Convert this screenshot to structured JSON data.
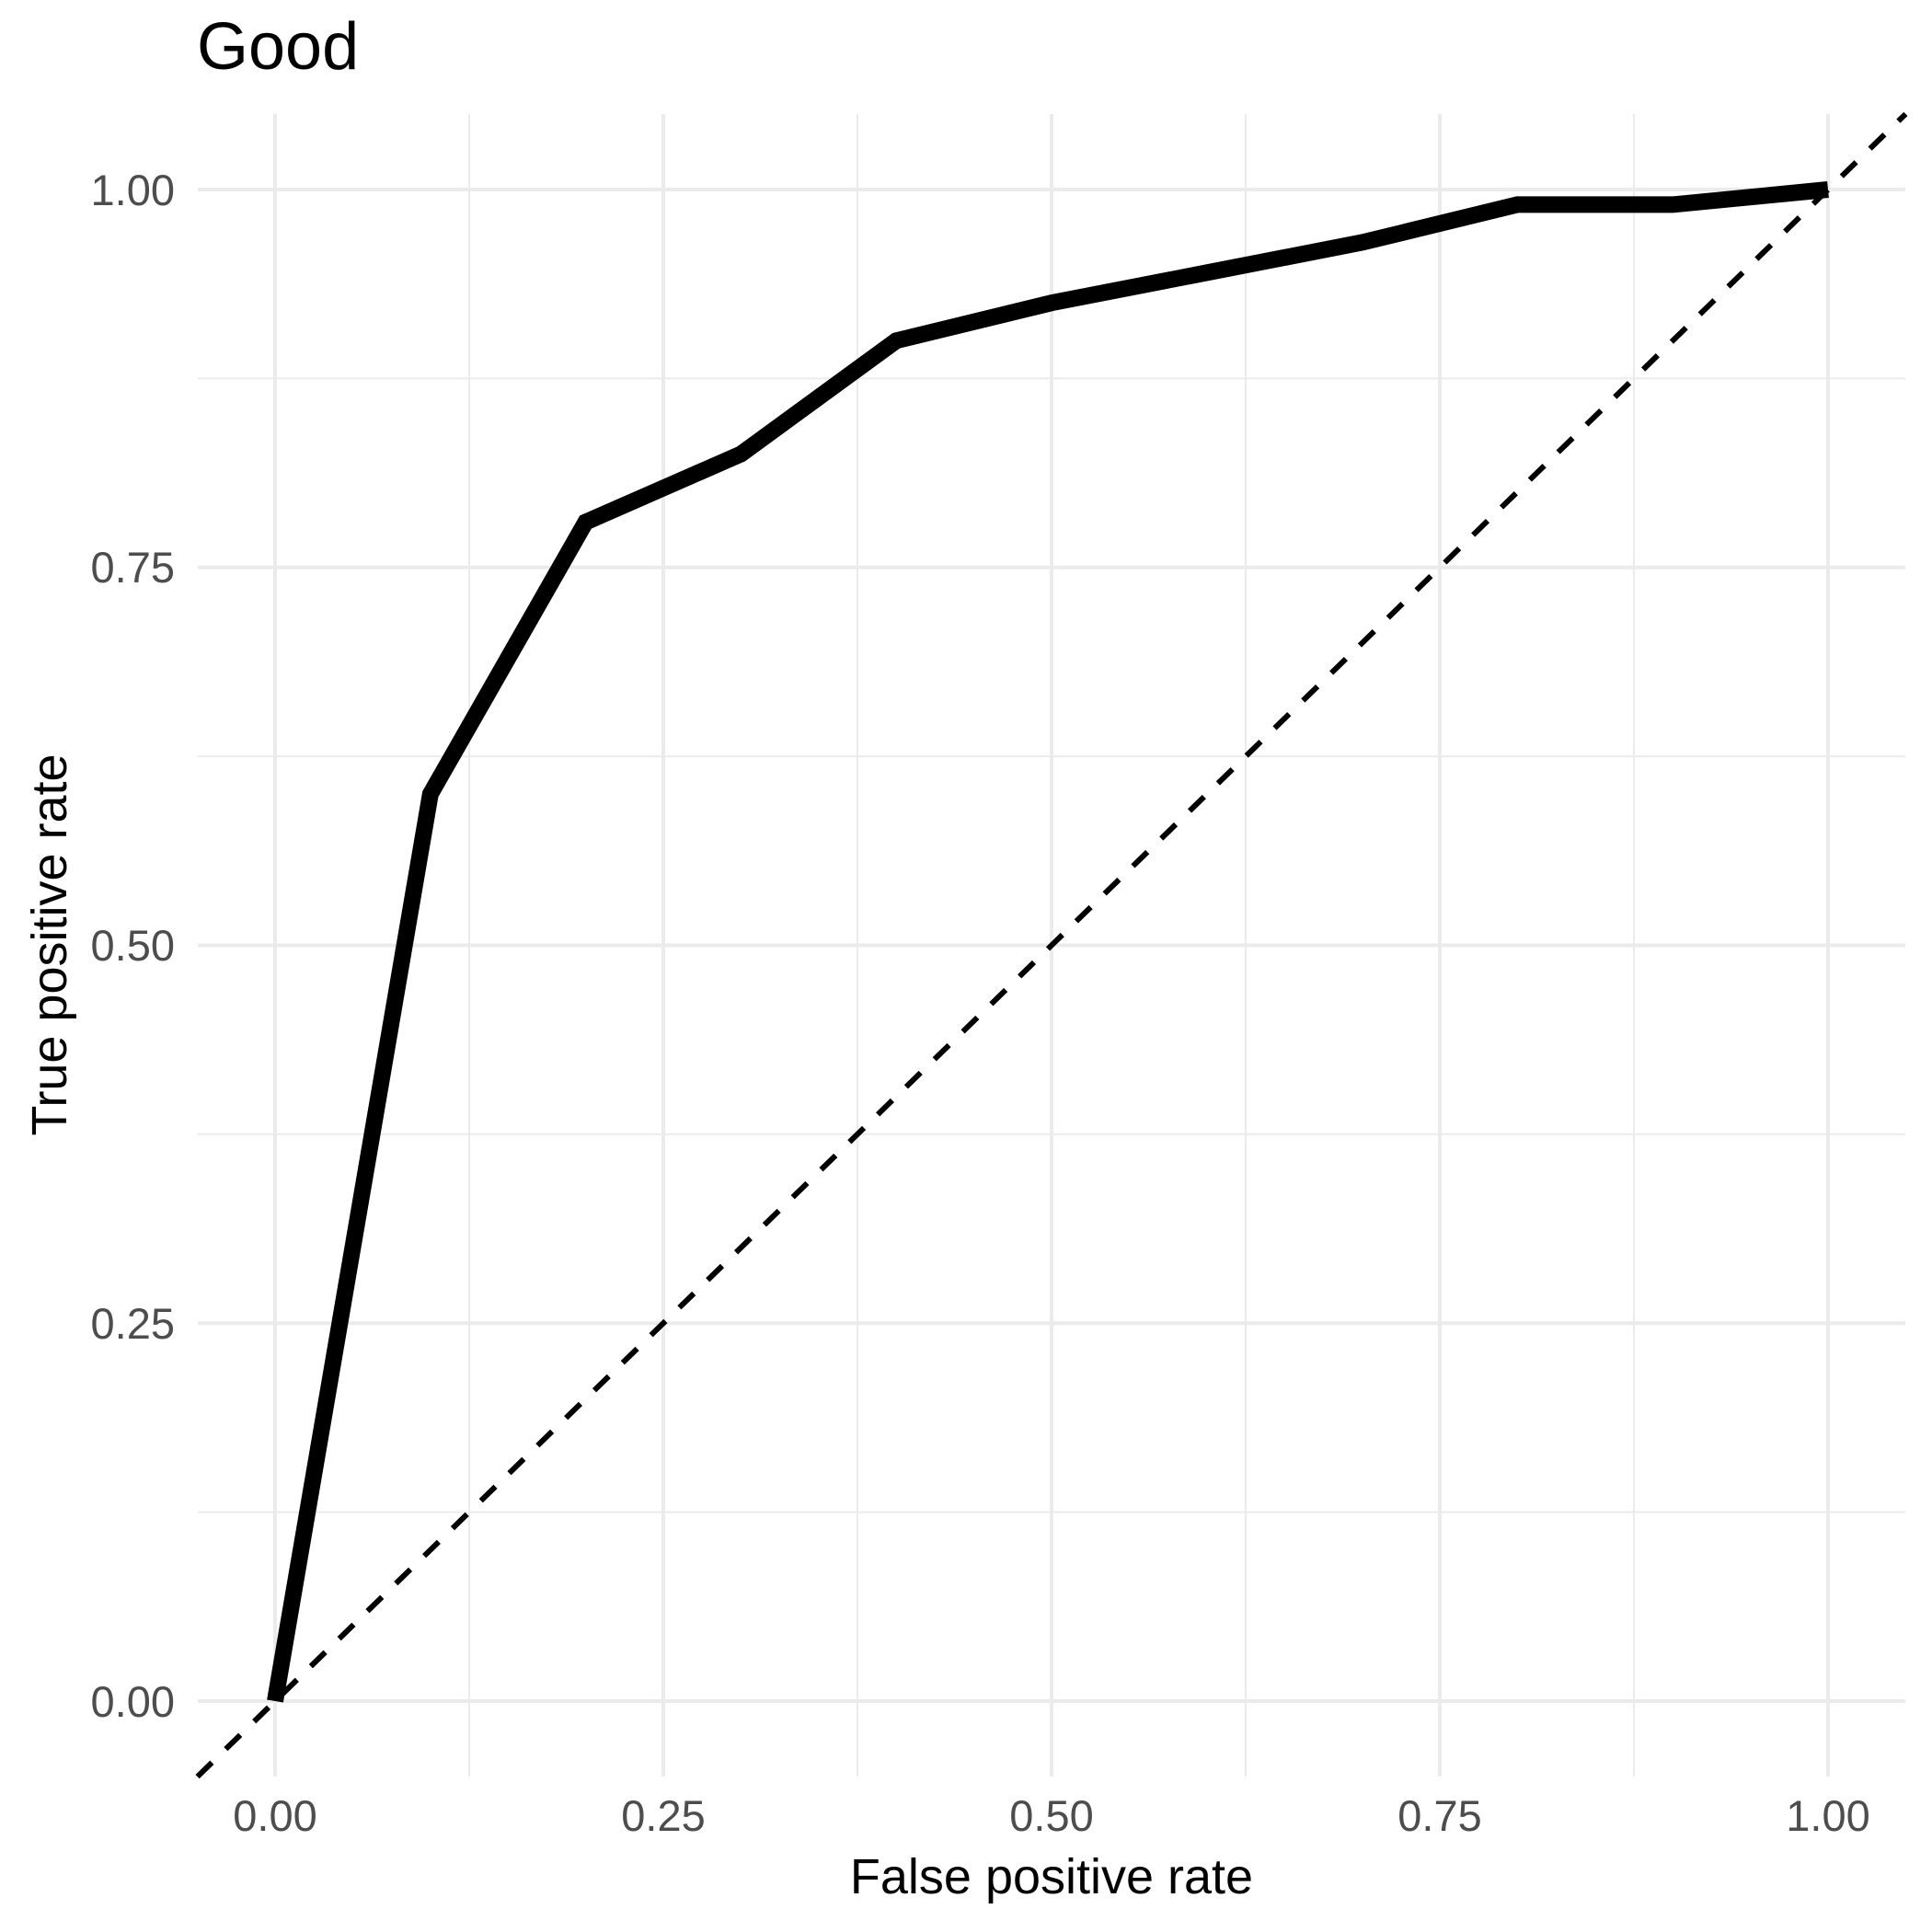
{
  "title": "Good",
  "x_axis": {
    "title": "False positive rate",
    "ticks": [
      {
        "label": "0.00",
        "value": 0
      },
      {
        "label": "0.25",
        "value": 0.25
      },
      {
        "label": "0.50",
        "value": 0.5
      },
      {
        "label": "0.75",
        "value": 0.75
      },
      {
        "label": "1.00",
        "value": 1
      }
    ]
  },
  "y_axis": {
    "title": "True positive rate",
    "ticks": [
      {
        "label": "0.00",
        "value": 0
      },
      {
        "label": "0.25",
        "value": 0.25
      },
      {
        "label": "0.50",
        "value": 0.5
      },
      {
        "label": "0.75",
        "value": 0.75
      },
      {
        "label": "1.00",
        "value": 1
      }
    ]
  },
  "chart_data": {
    "type": "line",
    "title": "Good",
    "xlabel": "False positive rate",
    "ylabel": "True positive rate",
    "xlim": [
      0,
      1
    ],
    "ylim": [
      0,
      1
    ],
    "grid": "major and minor gridlines on, light gray, no tick marks, no panel border",
    "legend": "none",
    "series": [
      {
        "name": "roc-curve",
        "color": "#000000",
        "style": "solid",
        "stroke_width_px": 18,
        "x": [
          0,
          0.1,
          0.2,
          0.3,
          0.4,
          0.5,
          0.6,
          0.7,
          0.8,
          0.9,
          1.0
        ],
        "y": [
          0,
          0.6,
          0.78,
          0.825,
          0.9,
          0.925,
          0.945,
          0.965,
          0.99,
          0.99,
          1.0
        ]
      },
      {
        "name": "chance-diagonal",
        "color": "#000000",
        "style": "dashed",
        "stroke_width_px": 6,
        "reference_line": true,
        "x": [
          0,
          1
        ],
        "y": [
          0,
          1
        ]
      }
    ]
  },
  "colors": {
    "background": "#FFFFFF",
    "gridline": "#EBEBEB",
    "axis_text": "#4D4D4D",
    "title_text": "#000000",
    "curve": "#000000"
  }
}
